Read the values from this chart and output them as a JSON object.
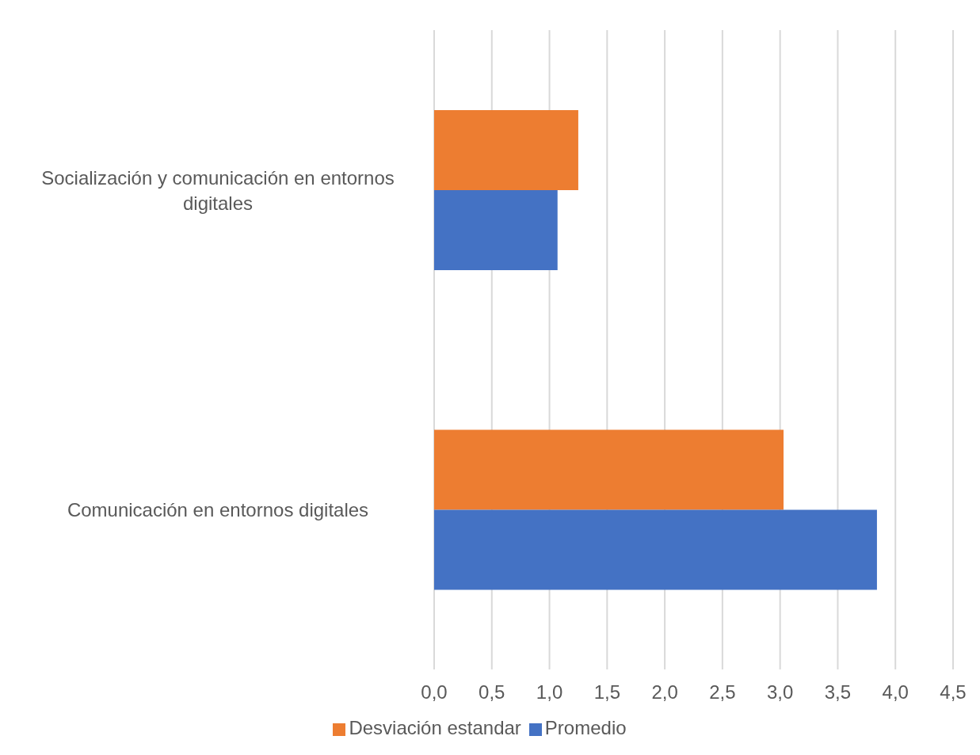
{
  "chart_data": {
    "type": "bar",
    "orientation": "horizontal",
    "categories": [
      "Socialización y comunicación en entornos digitales",
      "Comunicación en entornos digitales"
    ],
    "series": [
      {
        "name": "Desviación estandar",
        "color": "#ed7d31",
        "values": [
          1.25,
          3.03
        ]
      },
      {
        "name": "Promedio",
        "color": "#4472c4",
        "values": [
          1.07,
          3.84
        ]
      }
    ],
    "xlim": [
      0,
      4.5
    ],
    "xticks": [
      {
        "value": 0,
        "label": "0,0"
      },
      {
        "value": 0.5,
        "label": "0,5"
      },
      {
        "value": 1,
        "label": "1,0"
      },
      {
        "value": 1.5,
        "label": "1,5"
      },
      {
        "value": 2,
        "label": "2,0"
      },
      {
        "value": 2.5,
        "label": "2,5"
      },
      {
        "value": 3,
        "label": "3,0"
      },
      {
        "value": 3.5,
        "label": "3,5"
      },
      {
        "value": 4,
        "label": "4,0"
      },
      {
        "value": 4.5,
        "label": "4,5"
      }
    ],
    "grid": "x",
    "legend": "bottom"
  }
}
